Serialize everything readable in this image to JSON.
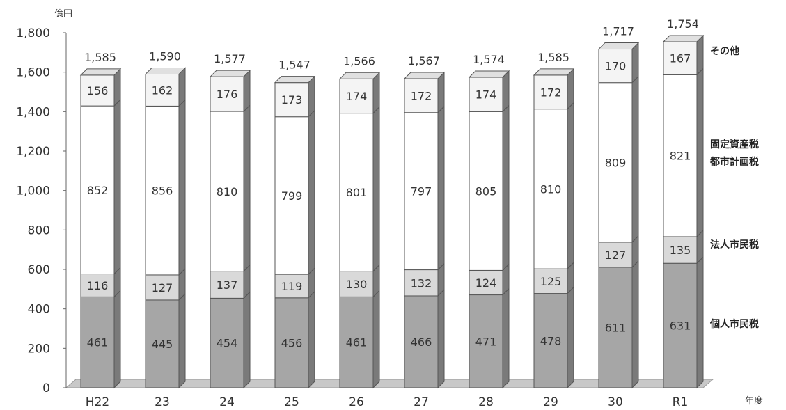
{
  "chart_data": {
    "type": "bar",
    "stacked": true,
    "y_unit_label": "億円",
    "x_unit_label": "年度",
    "categories": [
      "H22",
      "23",
      "24",
      "25",
      "26",
      "27",
      "28",
      "29",
      "30",
      "R1"
    ],
    "ylim": [
      0,
      1800
    ],
    "yticks": [
      "0",
      "200",
      "400",
      "600",
      "800",
      "1,000",
      "1,200",
      "1,400",
      "1,600",
      "1,800"
    ],
    "grid": false,
    "series": [
      {
        "name": "個人市民税",
        "values": [
          461,
          445,
          454,
          456,
          461,
          466,
          471,
          478,
          611,
          631
        ],
        "color": "#a6a6a6"
      },
      {
        "name": "法人市民税",
        "values": [
          116,
          127,
          137,
          119,
          130,
          132,
          124,
          125,
          127,
          135
        ],
        "color": "#d9d9d9"
      },
      {
        "name": "固定資産税\n都市計画税",
        "values": [
          852,
          856,
          810,
          799,
          801,
          797,
          805,
          810,
          809,
          821
        ],
        "color": "#ffffff"
      },
      {
        "name": "その他",
        "values": [
          156,
          162,
          176,
          173,
          174,
          172,
          174,
          172,
          170,
          167
        ],
        "color": "#f4f4f4"
      }
    ],
    "totals": [
      "1,585",
      "1,590",
      "1,577",
      "1,547",
      "1,566",
      "1,567",
      "1,574",
      "1,585",
      "1,717",
      "1,754"
    ],
    "legend_position": "right"
  }
}
